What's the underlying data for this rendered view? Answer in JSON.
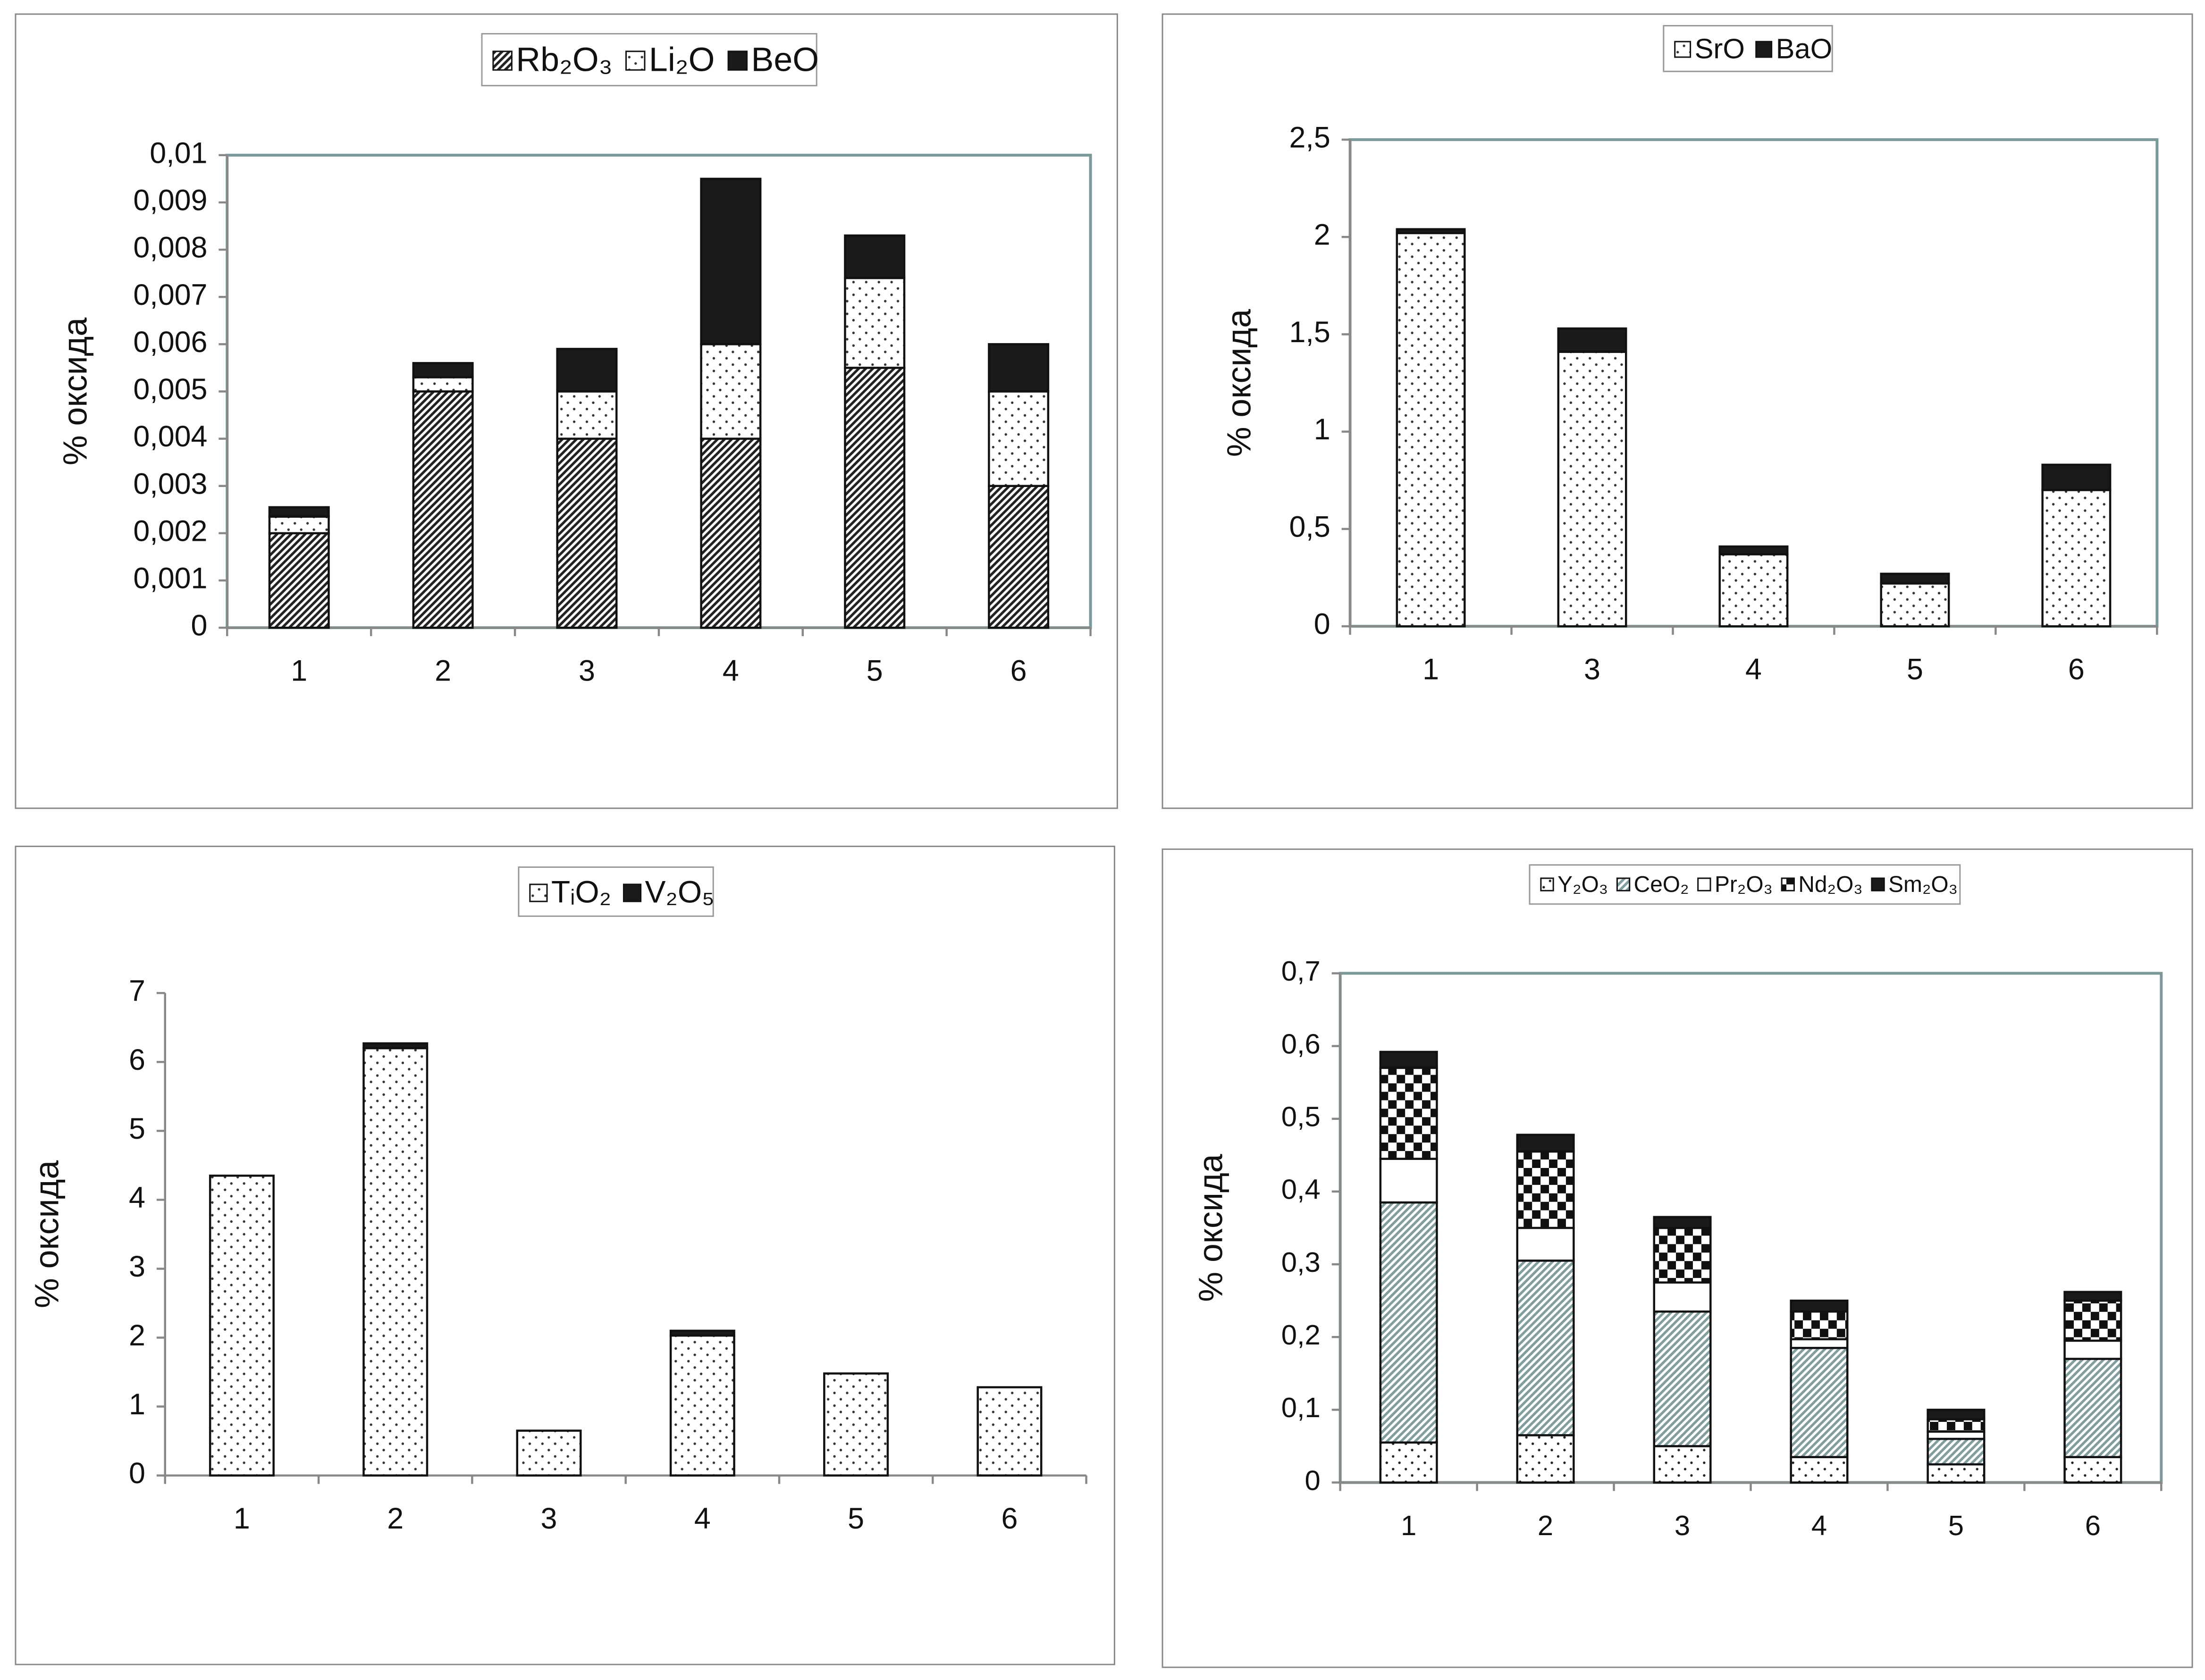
{
  "chart_data": [
    {
      "type": "bar",
      "stacked": true,
      "ylabel": "% оксида",
      "frame": true,
      "categories": [
        "1",
        "2",
        "3",
        "4",
        "5",
        "6"
      ],
      "series": [
        {
          "name": "Rb₂O₃",
          "color": "#222222",
          "pattern": "hatch",
          "values": [
            0.002,
            0.005,
            0.004,
            0.004,
            0.0055,
            0.003
          ]
        },
        {
          "name": "Li₂O",
          "color": "#333333",
          "pattern": "dots",
          "values": [
            0.00035,
            0.0003,
            0.001,
            0.002,
            0.0019,
            0.002
          ]
        },
        {
          "name": "BeO",
          "color": "#1a1a1a",
          "pattern": "solid",
          "values": [
            0.0002,
            0.0003,
            0.0009,
            0.0035,
            0.0009,
            0.001
          ]
        }
      ],
      "ylim": [
        0,
        0.01
      ],
      "yticks": [
        0,
        {
          "value": 0.001,
          "label": "0,001"
        },
        {
          "value": 0.002,
          "label": "0,002"
        },
        {
          "value": 0.003,
          "label": "0,003"
        },
        {
          "value": 0.004,
          "label": "0,004"
        },
        {
          "value": 0.005,
          "label": "0,005"
        },
        {
          "value": 0.006,
          "label": "0,006"
        },
        {
          "value": 0.007,
          "label": "0,007"
        },
        {
          "value": 0.008,
          "label": "0,008"
        },
        {
          "value": 0.009,
          "label": "0,009"
        },
        {
          "value": 0.01,
          "label": "0,01"
        }
      ]
    },
    {
      "type": "bar",
      "stacked": true,
      "ylabel": "% оксида",
      "frame": true,
      "categories": [
        "1",
        "3",
        "4",
        "5",
        "6"
      ],
      "series": [
        {
          "name": "SrO",
          "color": "#333333",
          "pattern": "dots",
          "values": [
            2.02,
            1.41,
            0.37,
            0.22,
            0.7
          ]
        },
        {
          "name": "BaO",
          "color": "#1a1a1a",
          "pattern": "solid",
          "values": [
            0.02,
            0.12,
            0.04,
            0.05,
            0.13
          ]
        }
      ],
      "ylim": [
        0,
        2.5
      ],
      "yticks": [
        0,
        {
          "value": 0.5,
          "label": "0,5"
        },
        1,
        {
          "value": 1.5,
          "label": "1,5"
        },
        2,
        {
          "value": 2.5,
          "label": "2,5"
        }
      ]
    },
    {
      "type": "bar",
      "stacked": true,
      "ylabel": "% оксида",
      "frame": false,
      "categories": [
        "1",
        "2",
        "3",
        "4",
        "5",
        "6"
      ],
      "series": [
        {
          "name": "TᵢO₂",
          "color": "#333333",
          "pattern": "dots",
          "values": [
            4.35,
            6.2,
            0.65,
            2.03,
            1.48,
            1.28
          ]
        },
        {
          "name": "V₂O₅",
          "color": "#1a1a1a",
          "pattern": "solid",
          "values": [
            0,
            0.07,
            0,
            0.07,
            0,
            0
          ]
        }
      ],
      "ylim": [
        0,
        7
      ],
      "yticks": [
        0,
        1,
        2,
        3,
        4,
        5,
        6,
        7
      ]
    },
    {
      "type": "bar",
      "stacked": true,
      "ylabel": "% оксида",
      "frame": true,
      "categories": [
        "1",
        "2",
        "3",
        "4",
        "5",
        "6"
      ],
      "series": [
        {
          "name": "Y₂O₃",
          "color": "#222222",
          "pattern": "dots",
          "values": [
            0.055,
            0.065,
            0.05,
            0.035,
            0.025,
            0.035
          ]
        },
        {
          "name": "CeO₂",
          "color": "#7f9e9e",
          "pattern": "hatch",
          "values": [
            0.33,
            0.24,
            0.185,
            0.15,
            0.035,
            0.135
          ]
        },
        {
          "name": "Pr₂O₃",
          "color": "#000000",
          "pattern": "none",
          "values": [
            0.06,
            0.045,
            0.04,
            0.012,
            0.01,
            0.025
          ]
        },
        {
          "name": "Nd₂O₃",
          "color": "#111111",
          "pattern": "checker",
          "values": [
            0.125,
            0.105,
            0.075,
            0.038,
            0.017,
            0.055
          ]
        },
        {
          "name": "Sm₂O₃",
          "color": "#1a1a1a",
          "pattern": "solid",
          "values": [
            0.022,
            0.023,
            0.015,
            0.015,
            0.013,
            0.012
          ]
        }
      ],
      "ylim": [
        0,
        0.7
      ],
      "yticks": [
        0,
        {
          "value": 0.1,
          "label": "0,1"
        },
        {
          "value": 0.2,
          "label": "0,2"
        },
        {
          "value": 0.3,
          "label": "0,3"
        },
        {
          "value": 0.4,
          "label": "0,4"
        },
        {
          "value": 0.5,
          "label": "0,5"
        },
        {
          "value": 0.6,
          "label": "0,6"
        },
        {
          "value": 0.7,
          "label": "0,7"
        }
      ]
    }
  ]
}
